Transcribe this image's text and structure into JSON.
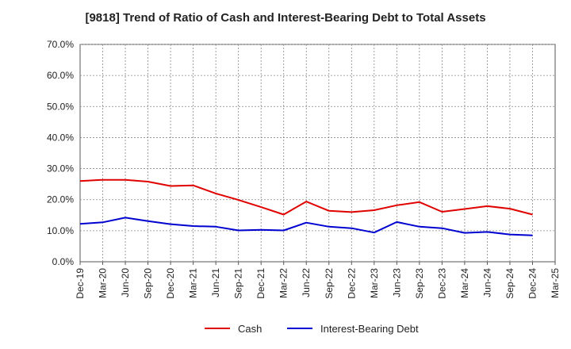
{
  "chart_data": {
    "type": "line",
    "title": "[9818]  Trend of Ratio of Cash and Interest-Bearing Debt to Total Assets",
    "xlabel": "",
    "ylabel": "",
    "categories": [
      "Dec-19",
      "Mar-20",
      "Jun-20",
      "Sep-20",
      "Dec-20",
      "Mar-21",
      "Jun-21",
      "Sep-21",
      "Dec-21",
      "Mar-22",
      "Jun-22",
      "Sep-22",
      "Dec-22",
      "Mar-23",
      "Jun-23",
      "Sep-23",
      "Dec-23",
      "Mar-24",
      "Jun-24",
      "Sep-24",
      "Dec-24",
      "Mar-25"
    ],
    "ylim": [
      0,
      70
    ],
    "yticks": [
      0,
      10,
      20,
      30,
      40,
      50,
      60,
      70
    ],
    "ytick_labels": [
      "0.0%",
      "10.0%",
      "20.0%",
      "30.0%",
      "40.0%",
      "50.0%",
      "60.0%",
      "70.0%"
    ],
    "grid": true,
    "legend_position": "bottom",
    "series": [
      {
        "name": "Cash",
        "color": "#e00000",
        "values": [
          26.0,
          26.4,
          26.4,
          25.8,
          24.4,
          24.6,
          22.0,
          19.9,
          17.6,
          15.2,
          19.4,
          16.4,
          16.0,
          16.6,
          18.2,
          19.2,
          16.1,
          17.0,
          17.9,
          17.1,
          15.2,
          null
        ]
      },
      {
        "name": "Interest-Bearing Debt",
        "color": "#0000d0",
        "values": [
          12.2,
          12.7,
          14.2,
          13.1,
          12.1,
          11.5,
          11.3,
          10.1,
          10.3,
          10.1,
          12.6,
          11.3,
          10.8,
          9.4,
          12.8,
          11.3,
          10.8,
          9.3,
          9.6,
          8.8,
          8.5,
          null
        ]
      }
    ]
  }
}
